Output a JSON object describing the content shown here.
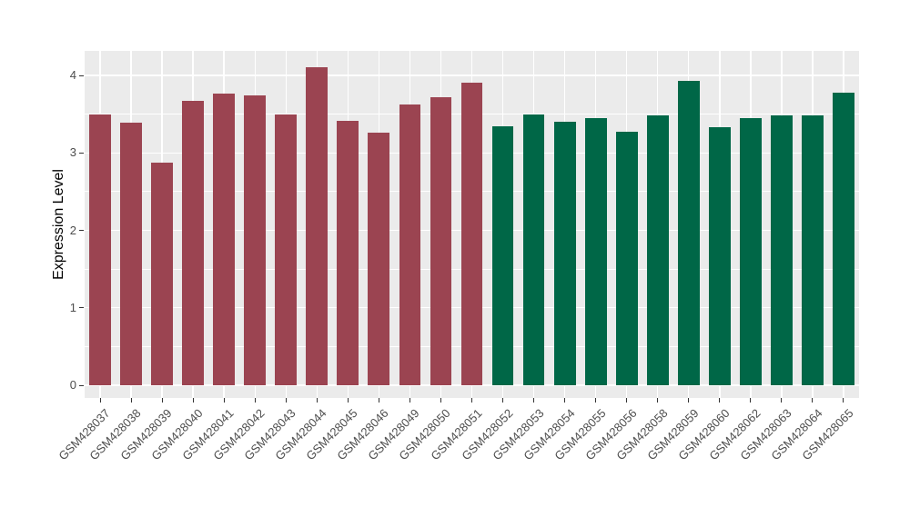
{
  "chart_data": {
    "type": "bar",
    "title": "",
    "xlabel": "",
    "ylabel": "Expression Level",
    "categories": [
      "GSM428037",
      "GSM428038",
      "GSM428039",
      "GSM428040",
      "GSM428041",
      "GSM428042",
      "GSM428043",
      "GSM428044",
      "GSM428045",
      "GSM428046",
      "GSM428049",
      "GSM428050",
      "GSM428051",
      "GSM428052",
      "GSM428053",
      "GSM428054",
      "GSM428055",
      "GSM428056",
      "GSM428058",
      "GSM428059",
      "GSM428060",
      "GSM428062",
      "GSM428063",
      "GSM428064",
      "GSM428065"
    ],
    "values": [
      3.5,
      3.39,
      2.87,
      3.67,
      3.76,
      3.74,
      3.5,
      4.1,
      3.41,
      3.26,
      3.63,
      3.72,
      3.91,
      3.34,
      3.5,
      3.4,
      3.45,
      3.27,
      3.48,
      3.93,
      3.33,
      3.45,
      3.48,
      3.49,
      3.78
    ],
    "bar_groups": [
      "maroon",
      "maroon",
      "maroon",
      "maroon",
      "maroon",
      "maroon",
      "maroon",
      "maroon",
      "maroon",
      "maroon",
      "maroon",
      "maroon",
      "maroon",
      "green",
      "green",
      "green",
      "green",
      "green",
      "green",
      "green",
      "green",
      "green",
      "green",
      "green",
      "green"
    ],
    "group_colors": {
      "maroon": "#9b4451",
      "green": "#006747"
    },
    "panel_background": "#ebebeb",
    "grid_color": "#ffffff",
    "tick_label_color": "#4d4d4d",
    "y_major_ticks": [
      0,
      1,
      2,
      3,
      4
    ],
    "y_minor_ticks": [
      0.5,
      1.5,
      2.5,
      3.5
    ],
    "ylim": [
      -0.164,
      4.317
    ],
    "x_label_angle": 45,
    "grid": "major and minor horizontal white lines, vertical white line per category",
    "legend": "none"
  }
}
